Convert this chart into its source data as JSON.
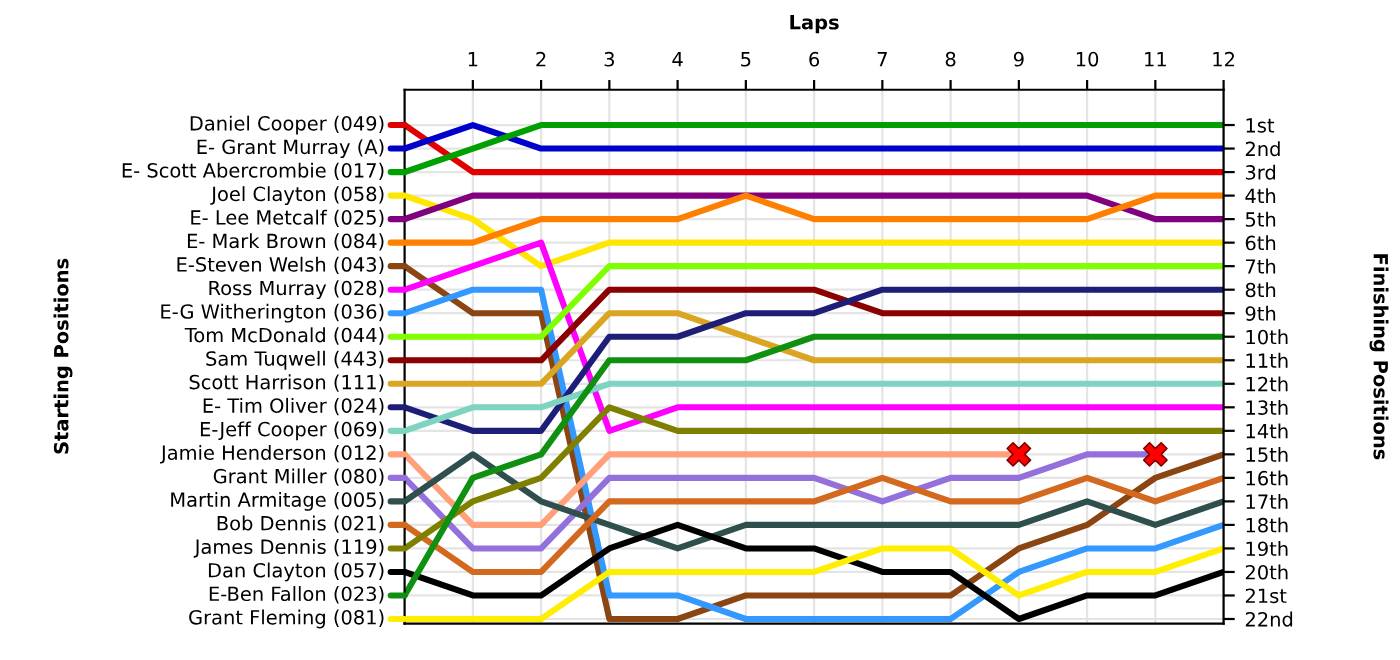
{
  "chart_data": {
    "type": "line",
    "xlabel": "Laps",
    "y2label": "Finishing Positions",
    "annotations": [
      "Starting Positions"
    ],
    "legend": "left",
    "x": [
      0,
      1,
      2,
      3,
      4,
      5,
      6,
      7,
      8,
      9,
      10,
      11,
      12
    ],
    "xlim": [
      0,
      12
    ],
    "xticks": [
      1,
      2,
      3,
      4,
      5,
      6,
      7,
      8,
      9,
      10,
      11,
      12
    ],
    "ylim": [
      22.2,
      -0.5
    ],
    "yticks": [
      {
        "value": 1,
        "label": "1st"
      },
      {
        "value": 2,
        "label": "2nd"
      },
      {
        "value": 3,
        "label": "3rd"
      },
      {
        "value": 4,
        "label": "4th"
      },
      {
        "value": 5,
        "label": "5th"
      },
      {
        "value": 6,
        "label": "6th"
      },
      {
        "value": 7,
        "label": "7th"
      },
      {
        "value": 8,
        "label": "8th"
      },
      {
        "value": 9,
        "label": "9th"
      },
      {
        "value": 10,
        "label": "10th"
      },
      {
        "value": 11,
        "label": "11th"
      },
      {
        "value": 12,
        "label": "12th"
      },
      {
        "value": 13,
        "label": "13th"
      },
      {
        "value": 14,
        "label": "14th"
      },
      {
        "value": 15,
        "label": "15th"
      },
      {
        "value": 16,
        "label": "16th"
      },
      {
        "value": 17,
        "label": "17th"
      },
      {
        "value": 18,
        "label": "18th"
      },
      {
        "value": 19,
        "label": "19th"
      },
      {
        "value": 20,
        "label": "20th"
      },
      {
        "value": 21,
        "label": "21st"
      },
      {
        "value": 22,
        "label": "22nd"
      }
    ],
    "grid": true,
    "marker": "none",
    "line_style": "solid",
    "series": [
      {
        "name": "Daniel Cooper (049)",
        "color": "#e00000",
        "values": [
          1,
          3,
          3,
          3,
          3,
          3,
          3,
          3,
          3,
          3,
          3,
          3,
          3
        ]
      },
      {
        "name": "E- Grant Murray (A)",
        "color": "#0000cc",
        "values": [
          2,
          1,
          2,
          2,
          2,
          2,
          2,
          2,
          2,
          2,
          2,
          2,
          2
        ]
      },
      {
        "name": "E- Scott Abercrombie (017)",
        "color": "#00a000",
        "values": [
          3,
          2,
          1,
          1,
          1,
          1,
          1,
          1,
          1,
          1,
          1,
          1,
          1
        ]
      },
      {
        "name": "Joel Clayton (058)",
        "color": "#ffe600",
        "values": [
          4,
          5,
          7,
          6,
          6,
          6,
          6,
          6,
          6,
          6,
          6,
          6,
          6
        ]
      },
      {
        "name": "E- Lee Metcalf (025)",
        "color": "#800080",
        "values": [
          5,
          4,
          4,
          4,
          4,
          4,
          4,
          4,
          4,
          4,
          4,
          5,
          5
        ]
      },
      {
        "name": "E- Mark Brown (084)",
        "color": "#ff8000",
        "values": [
          6,
          6,
          5,
          5,
          5,
          4,
          5,
          5,
          5,
          5,
          5,
          4,
          4
        ]
      },
      {
        "name": "E-Steven Welsh (043)",
        "color": "#8b4513",
        "values": [
          7,
          9,
          9,
          22,
          22,
          21,
          21,
          21,
          21,
          19,
          18,
          16,
          15
        ]
      },
      {
        "name": "Ross Murray (028)",
        "color": "#ff00ff",
        "values": [
          8,
          7,
          6,
          14,
          13,
          13,
          13,
          13,
          13,
          13,
          13,
          13,
          13
        ]
      },
      {
        "name": "E-G Witherington (036)",
        "color": "#3399ff",
        "values": [
          9,
          8,
          8,
          21,
          21,
          22,
          22,
          22,
          22,
          20,
          19,
          19,
          18
        ]
      },
      {
        "name": "Tom McDonald (044)",
        "color": "#80ff00",
        "values": [
          10,
          10,
          10,
          7,
          7,
          7,
          7,
          7,
          7,
          7,
          7,
          7,
          7
        ]
      },
      {
        "name": "Sam Tuqwell (443)",
        "color": "#8b0000",
        "values": [
          11,
          11,
          11,
          8,
          8,
          8,
          8,
          9,
          9,
          9,
          9,
          9,
          9
        ]
      },
      {
        "name": "Scott Harrison (111)",
        "color": "#daa520",
        "values": [
          12,
          12,
          12,
          9,
          9,
          10,
          11,
          11,
          11,
          11,
          11,
          11,
          11
        ]
      },
      {
        "name": "E- Tim Oliver (024)",
        "color": "#1e1e78",
        "values": [
          13,
          14,
          14,
          10,
          10,
          9,
          9,
          8,
          8,
          8,
          8,
          8,
          8
        ]
      },
      {
        "name": "E-Jeff Cooper (069)",
        "color": "#7fd4c1",
        "values": [
          14,
          13,
          13,
          12,
          12,
          12,
          12,
          12,
          12,
          12,
          12,
          12,
          12
        ]
      },
      {
        "name": "Jamie Henderson (012)",
        "color": "#ffa07a",
        "values": [
          15,
          18,
          18,
          15,
          15,
          15,
          15,
          15,
          15,
          15,
          null,
          null,
          null
        ]
      },
      {
        "name": "Grant Miller (080)",
        "color": "#9370db",
        "values": [
          16,
          19,
          19,
          16,
          16,
          16,
          16,
          17,
          16,
          16,
          15,
          15,
          null
        ]
      },
      {
        "name": "Martin Armitage (005)",
        "color": "#2f4f4f",
        "values": [
          17,
          15,
          17,
          18,
          19,
          18,
          18,
          18,
          18,
          18,
          17,
          18,
          17
        ]
      },
      {
        "name": "Bob Dennis (021)",
        "color": "#d2691e",
        "values": [
          18,
          20,
          20,
          17,
          17,
          17,
          17,
          16,
          17,
          17,
          16,
          17,
          16
        ]
      },
      {
        "name": "James Dennis (119)",
        "color": "#808000",
        "values": [
          19,
          17,
          16,
          13,
          14,
          14,
          14,
          14,
          14,
          14,
          14,
          14,
          14
        ]
      },
      {
        "name": "Dan Clayton (057)",
        "color": "#000000",
        "values": [
          20,
          21,
          21,
          19,
          18,
          19,
          19,
          20,
          20,
          22,
          21,
          21,
          20
        ]
      },
      {
        "name": "E-Ben Fallon (023)",
        "color": "#109010",
        "values": [
          21,
          16,
          15,
          11,
          11,
          11,
          10,
          10,
          10,
          10,
          10,
          10,
          10
        ]
      },
      {
        "name": "Grant Fleming (081)",
        "color": "#ffee00",
        "values": [
          22,
          22,
          22,
          20,
          20,
          20,
          20,
          19,
          19,
          21,
          20,
          20,
          19
        ]
      },
      {
        "type": "scatter",
        "marker": "cross",
        "color": "#ff0000",
        "x": [
          9,
          11
        ],
        "values": [
          15,
          15
        ]
      }
    ]
  }
}
